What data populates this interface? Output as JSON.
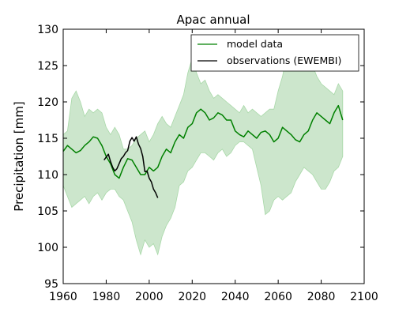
{
  "chart_data": {
    "type": "line",
    "title": "Apac annual",
    "xlabel": "",
    "ylabel": "Precipitation [mm]",
    "xlim": [
      1960,
      2100
    ],
    "ylim": [
      95,
      130
    ],
    "xticks": [
      1960,
      1980,
      2000,
      2020,
      2040,
      2060,
      2080,
      2100
    ],
    "yticks": [
      95,
      100,
      105,
      110,
      115,
      120,
      125,
      130
    ],
    "grid": false,
    "legend_position": "top-right",
    "colors": {
      "model": "#008000",
      "band": "#cce6cc",
      "band_edge": "#a8d8a8",
      "observations": "#000000"
    },
    "series": [
      {
        "name": "model data",
        "kind": "line",
        "x": [
          1960,
          1962,
          1964,
          1966,
          1968,
          1970,
          1972,
          1974,
          1976,
          1978,
          1980,
          1982,
          1984,
          1986,
          1988,
          1990,
          1992,
          1994,
          1996,
          1998,
          2000,
          2002,
          2004,
          2006,
          2008,
          2010,
          2012,
          2014,
          2016,
          2018,
          2020,
          2022,
          2024,
          2026,
          2028,
          2030,
          2032,
          2034,
          2036,
          2038,
          2040,
          2042,
          2044,
          2046,
          2048,
          2050,
          2052,
          2054,
          2056,
          2058,
          2060,
          2062,
          2064,
          2066,
          2068,
          2070,
          2072,
          2074,
          2076,
          2078,
          2080,
          2082,
          2084,
          2086,
          2088,
          2090
        ],
        "y": [
          113.2,
          114.0,
          113.5,
          113.0,
          113.3,
          114.0,
          114.5,
          115.2,
          115.0,
          114.0,
          112.5,
          111.5,
          110.0,
          109.5,
          111.0,
          112.2,
          112.0,
          111.0,
          110.0,
          110.0,
          111.0,
          110.5,
          111.0,
          112.5,
          113.5,
          113.0,
          114.5,
          115.5,
          115.0,
          116.5,
          117.0,
          118.5,
          119.0,
          118.5,
          117.5,
          117.8,
          118.5,
          118.2,
          117.5,
          117.5,
          116.0,
          115.5,
          115.2,
          116.0,
          115.5,
          115.0,
          115.8,
          116.0,
          115.5,
          114.5,
          115.0,
          116.5,
          116.0,
          115.5,
          114.8,
          114.5,
          115.5,
          116.0,
          117.5,
          118.5,
          118.0,
          117.5,
          117.0,
          118.5,
          119.5,
          117.5
        ]
      },
      {
        "name": "model range",
        "kind": "band",
        "x": [
          1960,
          1962,
          1964,
          1966,
          1968,
          1970,
          1972,
          1974,
          1976,
          1978,
          1980,
          1982,
          1984,
          1986,
          1988,
          1990,
          1992,
          1994,
          1996,
          1998,
          2000,
          2002,
          2004,
          2006,
          2008,
          2010,
          2012,
          2014,
          2016,
          2018,
          2020,
          2022,
          2024,
          2026,
          2028,
          2030,
          2032,
          2034,
          2036,
          2038,
          2040,
          2042,
          2044,
          2046,
          2048,
          2050,
          2052,
          2054,
          2056,
          2058,
          2060,
          2062,
          2064,
          2066,
          2068,
          2070,
          2072,
          2074,
          2076,
          2078,
          2080,
          2082,
          2084,
          2086,
          2088,
          2090
        ],
        "lower": [
          108.5,
          107.0,
          105.5,
          106.0,
          106.5,
          107.0,
          106.0,
          107.0,
          107.5,
          106.5,
          107.5,
          108.0,
          108.0,
          107.0,
          106.5,
          105.0,
          103.5,
          101.0,
          99.0,
          101.0,
          100.0,
          100.5,
          99.0,
          101.5,
          103.0,
          104.0,
          105.5,
          108.5,
          109.0,
          110.5,
          111.0,
          112.0,
          113.0,
          113.0,
          112.5,
          112.0,
          113.0,
          113.5,
          112.5,
          113.0,
          114.0,
          114.5,
          114.5,
          114.0,
          113.5,
          111.0,
          108.5,
          104.5,
          105.0,
          106.5,
          107.0,
          106.5,
          107.0,
          107.5,
          109.0,
          110.0,
          111.0,
          110.5,
          110.0,
          109.0,
          108.0,
          108.0,
          109.0,
          110.5,
          111.0,
          112.5
        ],
        "upper": [
          115.5,
          116.0,
          120.5,
          121.5,
          120.0,
          118.0,
          119.0,
          118.5,
          119.0,
          118.5,
          116.5,
          115.5,
          116.5,
          115.5,
          113.5,
          113.5,
          114.0,
          115.0,
          115.5,
          116.0,
          114.5,
          115.5,
          117.0,
          118.0,
          117.0,
          116.5,
          118.0,
          119.5,
          121.0,
          124.0,
          126.0,
          124.0,
          122.5,
          123.0,
          121.5,
          120.5,
          121.0,
          120.5,
          120.0,
          119.5,
          119.0,
          118.5,
          119.5,
          118.5,
          119.0,
          118.5,
          118.0,
          118.5,
          119.0,
          119.0,
          121.5,
          123.5,
          126.5,
          128.5,
          128.0,
          127.0,
          126.5,
          125.5,
          125.0,
          123.5,
          122.5,
          122.0,
          121.5,
          121.0,
          122.5,
          121.5
        ]
      },
      {
        "name": "observations (EWEMBI)",
        "kind": "line",
        "x": [
          1979,
          1980,
          1981,
          1982,
          1983,
          1984,
          1985,
          1986,
          1987,
          1988,
          1989,
          1990,
          1991,
          1992,
          1993,
          1994,
          1995,
          1996,
          1997,
          1998,
          1999,
          2000,
          2001,
          2002,
          2003,
          2004
        ],
        "y": [
          112.0,
          112.4,
          112.8,
          111.8,
          111.0,
          110.5,
          110.8,
          111.5,
          112.2,
          112.5,
          113.0,
          113.3,
          114.6,
          115.1,
          114.6,
          115.2,
          114.2,
          113.6,
          112.5,
          110.4,
          110.5,
          109.5,
          109.0,
          108.0,
          107.5,
          106.8
        ]
      }
    ]
  }
}
